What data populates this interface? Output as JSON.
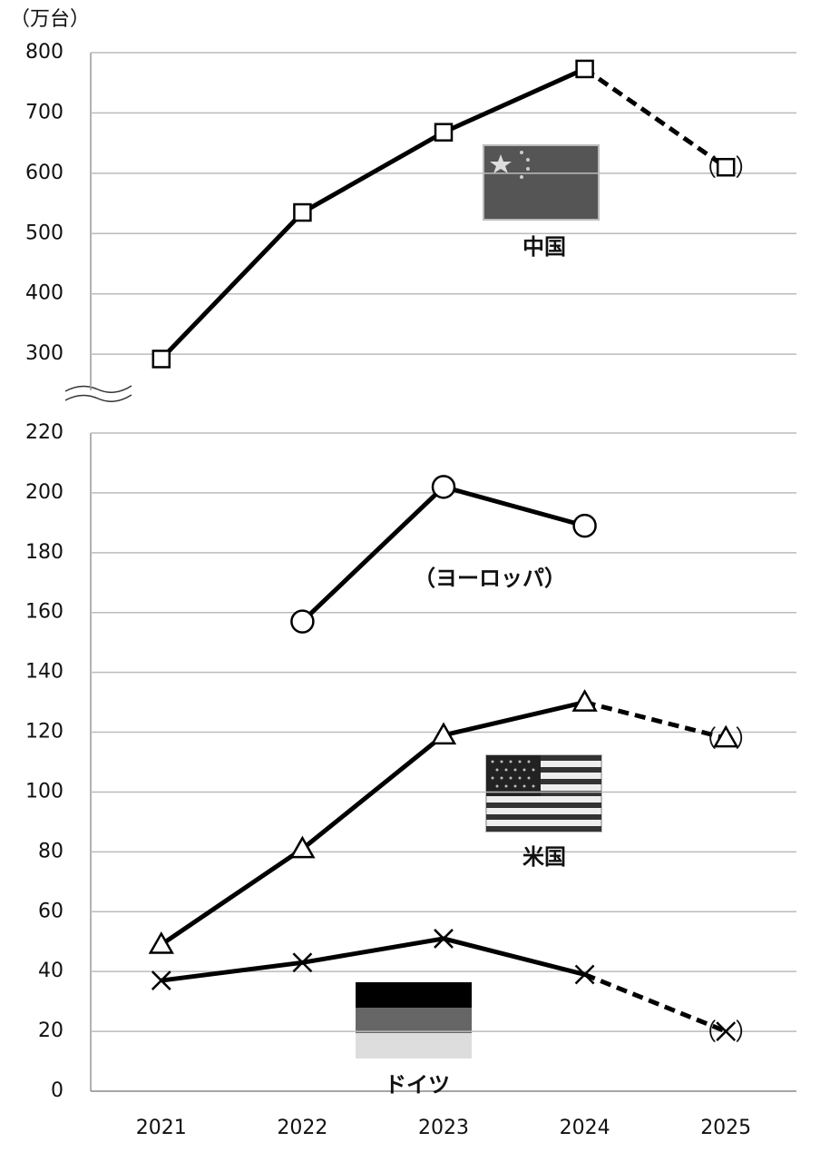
{
  "chart_data": [
    {
      "type": "line",
      "y_unit": "（万台）",
      "x": [
        2021,
        2022,
        2023,
        2024,
        2025
      ],
      "xlim": [
        2020.5,
        2025.5
      ],
      "ylim": [
        240,
        800
      ],
      "yticks": [
        300,
        400,
        500,
        600,
        700,
        800
      ],
      "grid": true,
      "forecast_start": 2024,
      "forecast_brackets": [
        "（",
        "）"
      ],
      "series": [
        {
          "name": "中国",
          "color": "#000000",
          "marker": "square",
          "values": [
            292,
            535,
            668,
            773,
            610
          ]
        }
      ]
    },
    {
      "type": "line",
      "x": [
        2021,
        2022,
        2023,
        2024,
        2025
      ],
      "xlim": [
        2020.5,
        2025.5
      ],
      "xticks": [
        2021,
        2022,
        2023,
        2024,
        2025
      ],
      "ylim": [
        0,
        220
      ],
      "yticks": [
        0,
        20,
        40,
        60,
        80,
        100,
        120,
        140,
        160,
        180,
        200,
        220
      ],
      "grid": true,
      "forecast_start": 2024,
      "forecast_brackets": [
        "（",
        "）"
      ],
      "series": [
        {
          "name": "（ヨーロッパ）",
          "color": "#000000",
          "marker": "circle",
          "values": [
            null,
            157,
            202,
            189,
            null
          ]
        },
        {
          "name": "米国",
          "color": "#000000",
          "marker": "triangle",
          "values": [
            49,
            81,
            119,
            130,
            118
          ]
        },
        {
          "name": "ドイツ",
          "color": "#000000",
          "marker": "x",
          "values": [
            37,
            43,
            51,
            39,
            20
          ]
        }
      ]
    }
  ]
}
